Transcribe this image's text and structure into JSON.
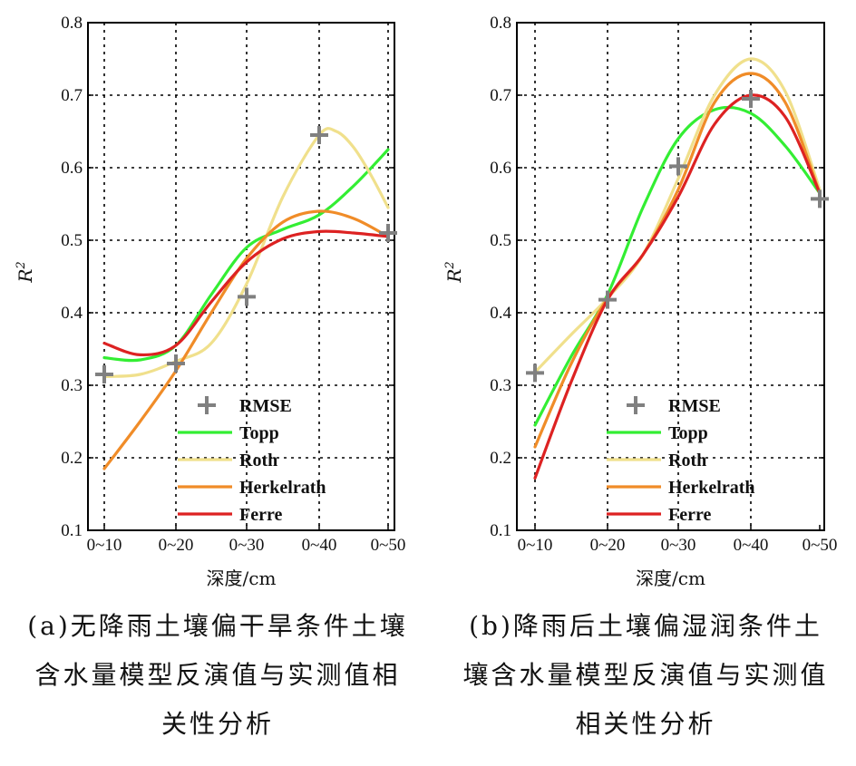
{
  "chart_data": [
    {
      "type": "line",
      "panel": "a",
      "categories": [
        "0~10",
        "0~20",
        "0~30",
        "0~40",
        "0~50"
      ],
      "xlabel": "深度/cm",
      "ylabel": "R",
      "ylabel_sup": "2",
      "ylim": [
        0.1,
        0.8
      ],
      "yticks": [
        "0.1",
        "0.2",
        "0.3",
        "0.4",
        "0.5",
        "0.6",
        "0.7",
        "0.8"
      ],
      "grid": true,
      "legend_position": "bottom-center",
      "markers": {
        "name": "RMSE",
        "values": [
          0.315,
          0.33,
          0.422,
          0.645,
          0.51
        ]
      },
      "series": [
        {
          "name": "Topp",
          "x": [
            0,
            0.5,
            1,
            1.5,
            2,
            2.5,
            3,
            3.5,
            4
          ],
          "values": [
            0.338,
            0.335,
            0.355,
            0.425,
            0.49,
            0.515,
            0.535,
            0.575,
            0.625
          ]
        },
        {
          "name": "Roth",
          "x": [
            0,
            0.5,
            1,
            1.5,
            2,
            2.5,
            3,
            3.25,
            3.5,
            3.75,
            4
          ],
          "values": [
            0.312,
            0.315,
            0.333,
            0.358,
            0.44,
            0.56,
            0.645,
            0.65,
            0.628,
            0.59,
            0.545
          ]
        },
        {
          "name": "Herkelrath",
          "x": [
            0,
            0.5,
            1,
            1.5,
            2,
            2.5,
            3,
            3.5,
            4
          ],
          "values": [
            0.185,
            0.25,
            0.32,
            0.4,
            0.475,
            0.525,
            0.54,
            0.53,
            0.505
          ]
        },
        {
          "name": "Ferre",
          "x": [
            0,
            0.5,
            1,
            1.5,
            2,
            2.5,
            3,
            3.5,
            4
          ],
          "values": [
            0.358,
            0.342,
            0.355,
            0.415,
            0.47,
            0.502,
            0.512,
            0.51,
            0.505
          ]
        }
      ],
      "caption": [
        "(a)无降雨土壤偏干旱条件土壤",
        "含水量模型反演值与实测值相",
        "关性分析"
      ]
    },
    {
      "type": "line",
      "panel": "b",
      "categories": [
        "0~10",
        "0~20",
        "0~30",
        "0~40",
        "0~50"
      ],
      "xlabel": "深度/cm",
      "ylabel": "R",
      "ylabel_sup": "2",
      "ylim": [
        0.1,
        0.8
      ],
      "yticks": [
        "0.1",
        "0.2",
        "0.3",
        "0.4",
        "0.5",
        "0.6",
        "0.7",
        "0.8"
      ],
      "grid": true,
      "legend_position": "bottom-center",
      "markers": {
        "name": "RMSE",
        "values": [
          0.317,
          0.418,
          0.602,
          0.695,
          0.557
        ]
      },
      "series": [
        {
          "name": "Topp",
          "x": [
            0,
            0.5,
            1,
            1.5,
            2,
            2.5,
            3,
            3.5,
            4
          ],
          "values": [
            0.245,
            0.34,
            0.425,
            0.545,
            0.64,
            0.68,
            0.675,
            0.63,
            0.565
          ]
        },
        {
          "name": "Roth",
          "x": [
            0,
            0.5,
            1,
            1.5,
            2,
            2.5,
            3,
            3.5,
            4
          ],
          "values": [
            0.318,
            0.37,
            0.42,
            0.48,
            0.585,
            0.7,
            0.75,
            0.705,
            0.57
          ]
        },
        {
          "name": "Herkelrath",
          "x": [
            0,
            0.5,
            1,
            1.5,
            2,
            2.5,
            3,
            3.5,
            4
          ],
          "values": [
            0.215,
            0.33,
            0.42,
            0.48,
            0.57,
            0.69,
            0.73,
            0.69,
            0.565
          ]
        },
        {
          "name": "Ferre",
          "x": [
            0,
            0.5,
            1,
            1.5,
            2,
            2.5,
            3,
            3.5,
            4
          ],
          "values": [
            0.172,
            0.305,
            0.418,
            0.48,
            0.56,
            0.66,
            0.7,
            0.67,
            0.565
          ]
        }
      ],
      "caption": [
        "(b)降雨后土壤偏湿润条件土",
        "壤含水量模型反演值与实测值",
        "相关性分析"
      ]
    }
  ],
  "colors": {
    "Topp": "#33ee33",
    "Roth": "#f0e08c",
    "Herkelrath": "#f08c28",
    "Ferre": "#dd2222",
    "RMSE": "#808080",
    "grid": "#000000",
    "axis": "#000000"
  }
}
